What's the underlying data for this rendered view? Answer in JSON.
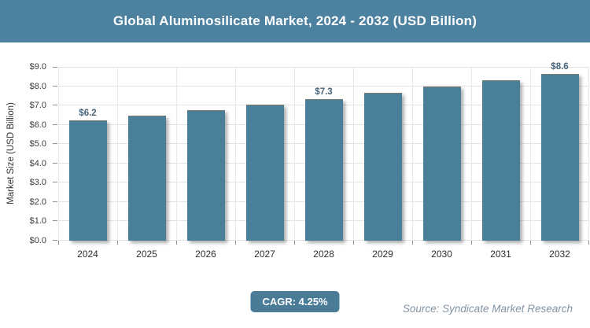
{
  "header": {
    "title": "Global Aluminosilicate Market, 2024 - 2032 (USD Billion)"
  },
  "chart_data": {
    "type": "bar",
    "title": "Global Aluminosilicate Market, 2024 - 2032 (USD Billion)",
    "categories": [
      "2024",
      "2025",
      "2026",
      "2027",
      "2028",
      "2029",
      "2030",
      "2031",
      "2032"
    ],
    "values": [
      6.2,
      6.45,
      6.7,
      7.0,
      7.3,
      7.6,
      7.95,
      8.25,
      8.6
    ],
    "data_labels": [
      "$6.2",
      "",
      "",
      "",
      "$7.3",
      "",
      "",
      "",
      "$8.6"
    ],
    "xlabel": "",
    "ylabel": "Market Size (USD Billion)",
    "ylim": [
      0,
      9
    ],
    "ytick_step": 1,
    "ytick_labels": [
      "$0.0",
      "$1.0",
      "$2.0",
      "$3.0",
      "$4.0",
      "$5.0",
      "$6.0",
      "$7.0",
      "$8.0",
      "$9.0"
    ],
    "grid": true,
    "legend": "none",
    "bar_color": "#4a7f99",
    "value_label_color": "#466379"
  },
  "footer": {
    "cagr_label": "CAGR: 4.25%",
    "source_text": "Source: Syndicate Market Research"
  },
  "colors": {
    "header_bg": "#4d81a0",
    "bar_fill": "#4a7f99",
    "badge_bg": "#4a7c98"
  }
}
